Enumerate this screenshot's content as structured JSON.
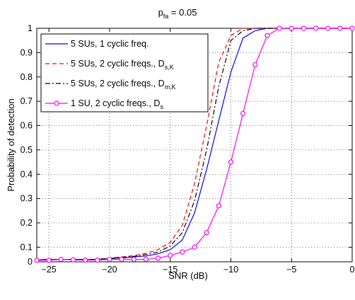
{
  "chart_data": {
    "type": "line",
    "title": "p",
    "title_subscript": "fa",
    "title_suffix": " = 0.05",
    "xlabel": "SNR (dB)",
    "ylabel": "Probability of detection",
    "xlim": [
      -26,
      0
    ],
    "ylim": [
      0.04,
      1
    ],
    "xticks": [
      -25,
      -20,
      -15,
      -10,
      -5,
      0
    ],
    "xtick_labels": [
      "−25",
      "−20",
      "−15",
      "−10",
      "−5",
      "0"
    ],
    "yticks": [
      0.1,
      0.2,
      0.3,
      0.4,
      0.5,
      0.6,
      0.7,
      0.8,
      0.9,
      1
    ],
    "ytick_labels": [
      "0.1",
      "0.2",
      "0.3",
      "0.4",
      "0.5",
      "0.6",
      "0.7",
      "0.8",
      "0.9",
      "1"
    ],
    "y_min_label": "0",
    "grid": true,
    "legend_position": "top-left",
    "series": [
      {
        "name": "5 SUs, 1 cyclic freq.",
        "name_subscript": "",
        "color": "#0000ff",
        "dash": "solid",
        "marker": "none",
        "x": [
          -26,
          -25,
          -24,
          -23,
          -22,
          -21,
          -20,
          -19,
          -18,
          -17,
          -16,
          -15,
          -14,
          -13,
          -12,
          -11,
          -10,
          -9,
          -8,
          -7,
          -6,
          -5,
          -4,
          -3,
          -2,
          -1,
          0
        ],
        "y": [
          0.048,
          0.05,
          0.05,
          0.05,
          0.05,
          0.05,
          0.053,
          0.056,
          0.06,
          0.064,
          0.073,
          0.09,
          0.13,
          0.24,
          0.42,
          0.62,
          0.82,
          0.96,
          0.99,
          1.0,
          1.0,
          1.0,
          1.0,
          1.0,
          1.0,
          1.0,
          1.0
        ]
      },
      {
        "name": "5 SUs, 2 cyclic freqs., D",
        "name_subscript": "s,K",
        "color": "#ff0000",
        "dash": "dashed",
        "marker": "none",
        "x": [
          -26,
          -25,
          -24,
          -23,
          -22,
          -21,
          -20,
          -19,
          -18,
          -17,
          -16,
          -15,
          -14,
          -13,
          -12,
          -11,
          -10,
          -9,
          -8,
          -7,
          -6,
          -5,
          -4,
          -3,
          -2,
          -1,
          0
        ],
        "y": [
          0.048,
          0.05,
          0.05,
          0.05,
          0.05,
          0.05,
          0.055,
          0.06,
          0.065,
          0.075,
          0.09,
          0.12,
          0.19,
          0.36,
          0.6,
          0.86,
          0.97,
          1.0,
          1.0,
          1.0,
          1.0,
          1.0,
          1.0,
          1.0,
          1.0,
          1.0,
          1.0
        ]
      },
      {
        "name": "5 SUs, 2 cyclic freqs., D",
        "name_subscript": "m,K",
        "color": "#000000",
        "dash": "dashdot",
        "marker": "none",
        "x": [
          -26,
          -25,
          -24,
          -23,
          -22,
          -21,
          -20,
          -19,
          -18,
          -17,
          -16,
          -15,
          -14,
          -13,
          -12,
          -11,
          -10,
          -9,
          -8,
          -7,
          -6,
          -5,
          -4,
          -3,
          -2,
          -1,
          0
        ],
        "y": [
          0.048,
          0.05,
          0.05,
          0.05,
          0.05,
          0.05,
          0.054,
          0.058,
          0.062,
          0.07,
          0.08,
          0.105,
          0.16,
          0.29,
          0.5,
          0.76,
          0.95,
          0.99,
          1.0,
          1.0,
          1.0,
          1.0,
          1.0,
          1.0,
          1.0,
          1.0,
          1.0
        ]
      },
      {
        "name": "1 SU, 2 cyclic freqs., D",
        "name_subscript": "s",
        "color": "#ff00ff",
        "dash": "solid",
        "marker": "circle",
        "x": [
          -26,
          -25,
          -24,
          -23,
          -22,
          -21,
          -20,
          -19,
          -18,
          -17,
          -16,
          -15,
          -14,
          -13,
          -12,
          -11,
          -10,
          -9,
          -8,
          -7,
          -6,
          -5,
          -4,
          -3,
          -2,
          -1,
          0
        ],
        "y": [
          0.046,
          0.046,
          0.05,
          0.048,
          0.047,
          0.047,
          0.05,
          0.05,
          0.05,
          0.05,
          0.055,
          0.066,
          0.08,
          0.1,
          0.16,
          0.27,
          0.45,
          0.65,
          0.85,
          0.97,
          1.0,
          1.0,
          1.0,
          1.0,
          1.0,
          1.0,
          1.0
        ]
      }
    ]
  }
}
